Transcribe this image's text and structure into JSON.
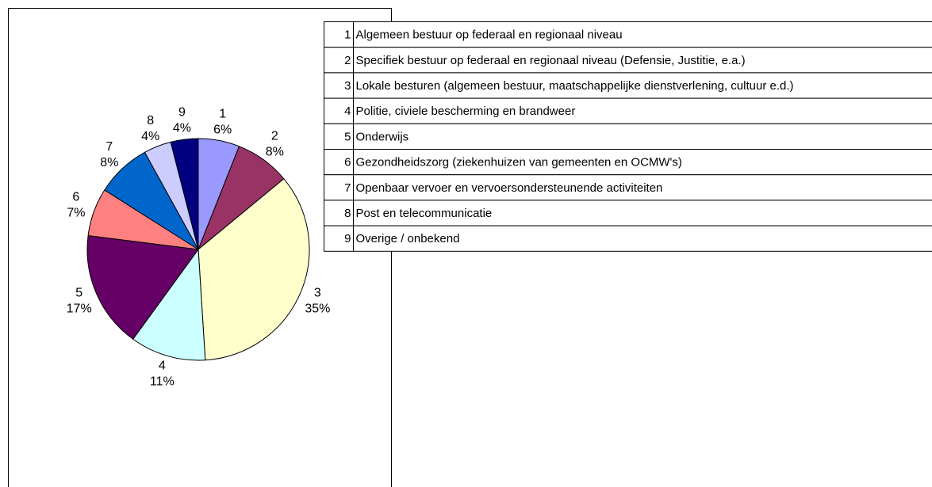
{
  "chart_data": {
    "type": "pie",
    "categories": [
      "1",
      "2",
      "3",
      "4",
      "5",
      "6",
      "7",
      "8",
      "9"
    ],
    "values": [
      6,
      8,
      35,
      11,
      17,
      7,
      8,
      4,
      4
    ],
    "value_labels": [
      "6%",
      "8%",
      "35%",
      "11%",
      "17%",
      "7%",
      "8%",
      "4%",
      "4%"
    ],
    "colors": [
      "#9999ff",
      "#993366",
      "#ffffcc",
      "#ccffff",
      "#660066",
      "#ff8080",
      "#0066cc",
      "#ccccff",
      "#000080"
    ]
  },
  "legend_table": {
    "descriptions": [
      "Algemeen bestuur op federaal en regionaal niveau",
      "Specifiek bestuur op federaal en regionaal niveau (Defensie, Justitie, e.a.)",
      "Lokale besturen (algemeen bestuur, maatschappelijke dienstverlening, cultuur e.d.)",
      "Politie, civiele bescherming en brandweer",
      "Onderwijs",
      "Gezondheidszorg (ziekenhuizen van gemeenten en OCMW's)",
      "Openbaar vervoer en vervoersondersteunende activiteiten",
      "Post en telecommunicatie",
      "Overige / onbekend"
    ]
  }
}
